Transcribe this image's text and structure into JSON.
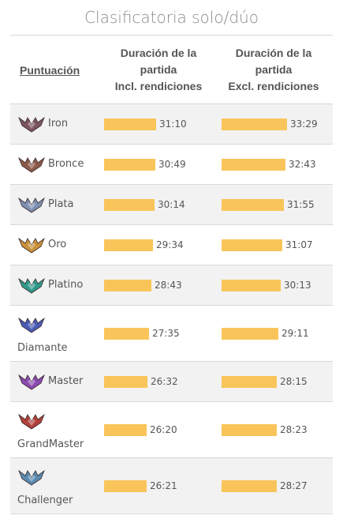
{
  "page": {
    "title": "Clasificatoria solo/dúo"
  },
  "table": {
    "headers": {
      "rank": "Puntuación",
      "incl": [
        "Duración de la",
        "partida",
        "Incl. rendiciones"
      ],
      "excl": [
        "Duración de la",
        "partida",
        "Excl. rendiciones"
      ]
    }
  },
  "colors": {
    "bar": "#f9c55a",
    "row_alt": "#f2f2f2"
  },
  "chart_data": {
    "type": "table",
    "title": "Clasificatoria solo/dúo",
    "columns": [
      "Puntuación",
      "Duración de la partida Incl. rendiciones",
      "Duración de la partida Excl. rendiciones"
    ],
    "rows": [
      {
        "rank": "Iron",
        "icon": "iron-emblem-icon",
        "icon_color": "#7a5560",
        "incl": "31:10",
        "incl_sec": 1870,
        "excl": "33:29",
        "excl_sec": 2009
      },
      {
        "rank": "Bronce",
        "icon": "bronze-emblem-icon",
        "icon_color": "#8c5a4a",
        "incl": "30:49",
        "incl_sec": 1849,
        "excl": "32:43",
        "excl_sec": 1963
      },
      {
        "rank": "Plata",
        "icon": "silver-emblem-icon",
        "icon_color": "#7d8fb0",
        "incl": "30:14",
        "incl_sec": 1814,
        "excl": "31:55",
        "excl_sec": 1915
      },
      {
        "rank": "Oro",
        "icon": "gold-emblem-icon",
        "icon_color": "#c8913a",
        "incl": "29:34",
        "incl_sec": 1774,
        "excl": "31:07",
        "excl_sec": 1867
      },
      {
        "rank": "Platino",
        "icon": "platinum-emblem-icon",
        "icon_color": "#2f9a8a",
        "incl": "28:43",
        "incl_sec": 1723,
        "excl": "30:13",
        "excl_sec": 1813
      },
      {
        "rank": "Diamante",
        "icon": "diamond-emblem-icon",
        "icon_color": "#4a5bb5",
        "incl": "27:35",
        "incl_sec": 1655,
        "excl": "29:11",
        "excl_sec": 1751
      },
      {
        "rank": "Master",
        "icon": "master-emblem-icon",
        "icon_color": "#8a4ab0",
        "incl": "26:32",
        "incl_sec": 1592,
        "excl": "28:15",
        "excl_sec": 1695
      },
      {
        "rank": "GrandMaster",
        "icon": "grandmaster-emblem-icon",
        "icon_color": "#b0403a",
        "incl": "26:20",
        "incl_sec": 1580,
        "excl": "28:23",
        "excl_sec": 1703
      },
      {
        "rank": "Challenger",
        "icon": "challenger-emblem-icon",
        "icon_color": "#5a8ab0",
        "incl": "26:21",
        "incl_sec": 1581,
        "excl": "28:27",
        "excl_sec": 1707
      }
    ]
  }
}
